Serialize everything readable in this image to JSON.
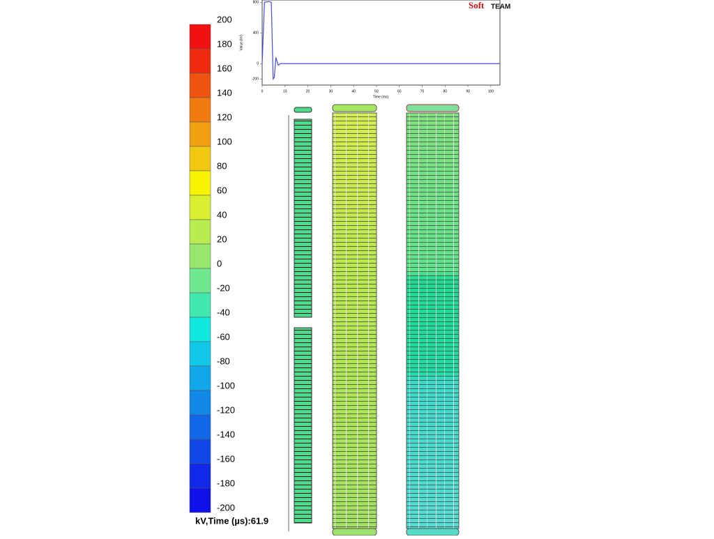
{
  "chart_data": {
    "type": "line",
    "logo": [
      "Soft",
      "TEAM"
    ],
    "ylabel": "Value (kV)",
    "xlabel": "Time (ms)",
    "xlim": [
      0,
      104
    ],
    "ylim": [
      -280,
      830
    ],
    "xticks": [
      0,
      10,
      20,
      30,
      40,
      50,
      60,
      70,
      80,
      90,
      100
    ],
    "yticks": [
      800,
      400,
      0,
      -200
    ],
    "x": [
      0,
      0.5,
      1,
      3,
      4,
      4.8,
      5.3,
      6,
      7,
      8,
      104
    ],
    "series": [
      {
        "color": "#4a4adf",
        "values": [
          0,
          400,
          800,
          810,
          800,
          -200,
          -180,
          80,
          -20,
          0,
          0
        ]
      }
    ]
  },
  "colorbar": {
    "levels": [
      200,
      180,
      160,
      140,
      120,
      100,
      80,
      60,
      40,
      20,
      0,
      -20,
      -40,
      -60,
      -80,
      -100,
      -120,
      -140,
      -160,
      -180,
      -200
    ],
    "colors": [
      "#f01010",
      "#f02c10",
      "#f05210",
      "#f07a10",
      "#f0a010",
      "#f0c810",
      "#f8f400",
      "#d8f030",
      "#b8ec50",
      "#98e870",
      "#70e890",
      "#40e8b0",
      "#10e8e0",
      "#10c8e8",
      "#10a8e8",
      "#1088e8",
      "#1068e8",
      "#1048e8",
      "#1028e8",
      "#1010e8"
    ]
  },
  "footer_label": "kV,Time (µs):61.9"
}
